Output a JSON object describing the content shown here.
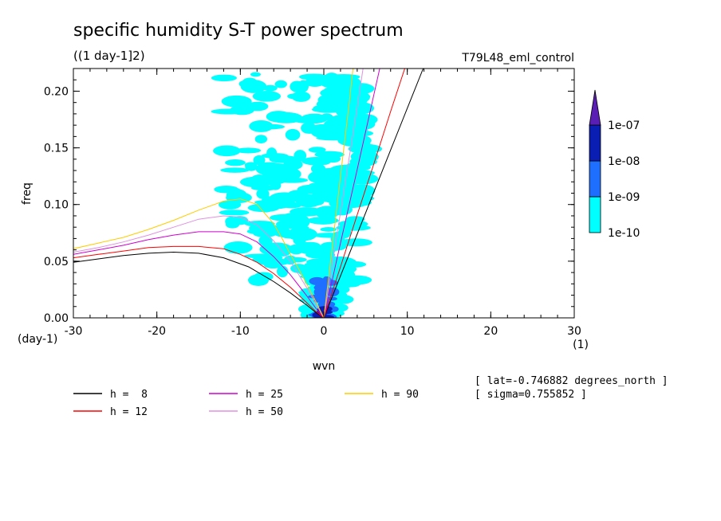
{
  "chart_data": {
    "type": "contour",
    "title": "specific humidity S-T power spectrum",
    "subtitle": "((1 day-1]2)",
    "run_name": "T79L48_eml_control",
    "xlabel": "wvn",
    "ylabel": "freq",
    "x_unit": "(1)",
    "y_unit": "(day-1)",
    "xlim": [
      -30,
      30
    ],
    "ylim": [
      0.0,
      0.22
    ],
    "x_ticks": [
      -30,
      -20,
      -10,
      0,
      10,
      20,
      30
    ],
    "x_tick_labels": [
      "-30",
      "-20",
      "-10",
      "0",
      "10",
      "20",
      "30"
    ],
    "y_ticks": [
      0.0,
      0.05,
      0.1,
      0.15,
      0.2
    ],
    "y_tick_labels": [
      "0.00",
      "0.05",
      "0.10",
      "0.15",
      "0.20"
    ],
    "colorbar": {
      "levels": [
        1e-10,
        1e-09,
        1e-08,
        1e-07
      ],
      "labels": [
        "1e-10",
        "1e-09",
        "1e-08",
        "1e-07"
      ],
      "colors": [
        "#00ffff",
        "#1e6eff",
        "#0a1eb4",
        "#5a1eb4"
      ]
    },
    "contour_regions": [
      {
        "level": 0,
        "x": [
          -1.5,
          2.5
        ],
        "y": [
          0.0,
          0.05
        ]
      },
      {
        "level": 0,
        "x": [
          -12,
          1
        ],
        "y": [
          0.06,
          0.215
        ]
      },
      {
        "level": 0,
        "x": [
          0,
          5
        ],
        "y": [
          0.1,
          0.215
        ]
      },
      {
        "level": 0,
        "x": [
          -8,
          4
        ],
        "y": [
          0.03,
          0.14
        ]
      },
      {
        "level": 1,
        "x": [
          -1.2,
          1.2
        ],
        "y": [
          0.0,
          0.035
        ]
      },
      {
        "level": 2,
        "x": [
          -0.6,
          0.6
        ],
        "y": [
          0.0,
          0.008
        ]
      }
    ],
    "series": [
      {
        "name": "h =  8",
        "color": "#000000",
        "branches": [
          {
            "x": [
              -30,
              -27,
              -24,
              -21,
              -18,
              -15,
              -12,
              -9,
              -6,
              -4,
              -2,
              -1,
              0
            ],
            "y": [
              0.049,
              0.052,
              0.055,
              0.057,
              0.058,
              0.057,
              0.053,
              0.045,
              0.032,
              0.022,
              0.011,
              0.005,
              0.0
            ]
          },
          {
            "x": [
              0,
              2,
              4,
              6,
              8,
              10,
              11.9
            ],
            "y": [
              0.0,
              0.037,
              0.074,
              0.111,
              0.148,
              0.185,
              0.22
            ]
          }
        ]
      },
      {
        "name": "h = 12",
        "color": "#ff0000",
        "branches": [
          {
            "x": [
              -30,
              -27,
              -24,
              -21,
              -18,
              -15,
              -12,
              -10,
              -8,
              -6,
              -4,
              -2,
              -1,
              0
            ],
            "y": [
              0.053,
              0.056,
              0.059,
              0.062,
              0.063,
              0.063,
              0.061,
              0.056,
              0.049,
              0.039,
              0.027,
              0.013,
              0.006,
              0.0
            ]
          },
          {
            "x": [
              0,
              2,
              4,
              6,
              8,
              9.7
            ],
            "y": [
              0.0,
              0.045,
              0.091,
              0.136,
              0.182,
              0.22
            ]
          }
        ]
      },
      {
        "name": "h = 25",
        "color": "#d000d0",
        "branches": [
          {
            "x": [
              -30,
              -27,
              -24,
              -21,
              -18,
              -15,
              -12,
              -10,
              -8,
              -6,
              -4,
              -2,
              -1,
              0
            ],
            "y": [
              0.056,
              0.06,
              0.064,
              0.069,
              0.073,
              0.076,
              0.076,
              0.074,
              0.067,
              0.054,
              0.038,
              0.019,
              0.009,
              0.0
            ]
          },
          {
            "x": [
              0,
              2,
              4,
              6,
              6.7
            ],
            "y": [
              0.0,
              0.066,
              0.131,
              0.197,
              0.22
            ]
          }
        ]
      },
      {
        "name": "h = 50",
        "color": "#e090e0",
        "branches": [
          {
            "x": [
              -30,
              -27,
              -24,
              -21,
              -18,
              -15,
              -12,
              -10,
              -8,
              -6,
              -4,
              -2,
              -1,
              0
            ],
            "y": [
              0.058,
              0.062,
              0.067,
              0.073,
              0.08,
              0.087,
              0.09,
              0.089,
              0.082,
              0.068,
              0.05,
              0.026,
              0.013,
              0.0
            ]
          },
          {
            "x": [
              0,
              2,
              4,
              4.7
            ],
            "y": [
              0.0,
              0.093,
              0.186,
              0.22
            ]
          }
        ]
      },
      {
        "name": "h = 90",
        "color": "#ffcc00",
        "branches": [
          {
            "x": [
              -30,
              -27,
              -24,
              -21,
              -18,
              -15,
              -12,
              -10,
              -8,
              -6,
              -5,
              -4,
              -3,
              -2,
              -1,
              0
            ],
            "y": [
              0.061,
              0.066,
              0.071,
              0.078,
              0.086,
              0.095,
              0.103,
              0.105,
              0.1,
              0.083,
              0.07,
              0.056,
              0.043,
              0.029,
              0.015,
              0.0
            ]
          },
          {
            "x": [
              0,
              1,
              2,
              3,
              3.5
            ],
            "y": [
              0.0,
              0.062,
              0.125,
              0.187,
              0.22
            ]
          }
        ]
      }
    ],
    "legend_position": "bottom-left",
    "annotations": [
      "[ lat=-0.746882 degrees_north ]",
      "[ sigma=0.755852 ]"
    ]
  }
}
